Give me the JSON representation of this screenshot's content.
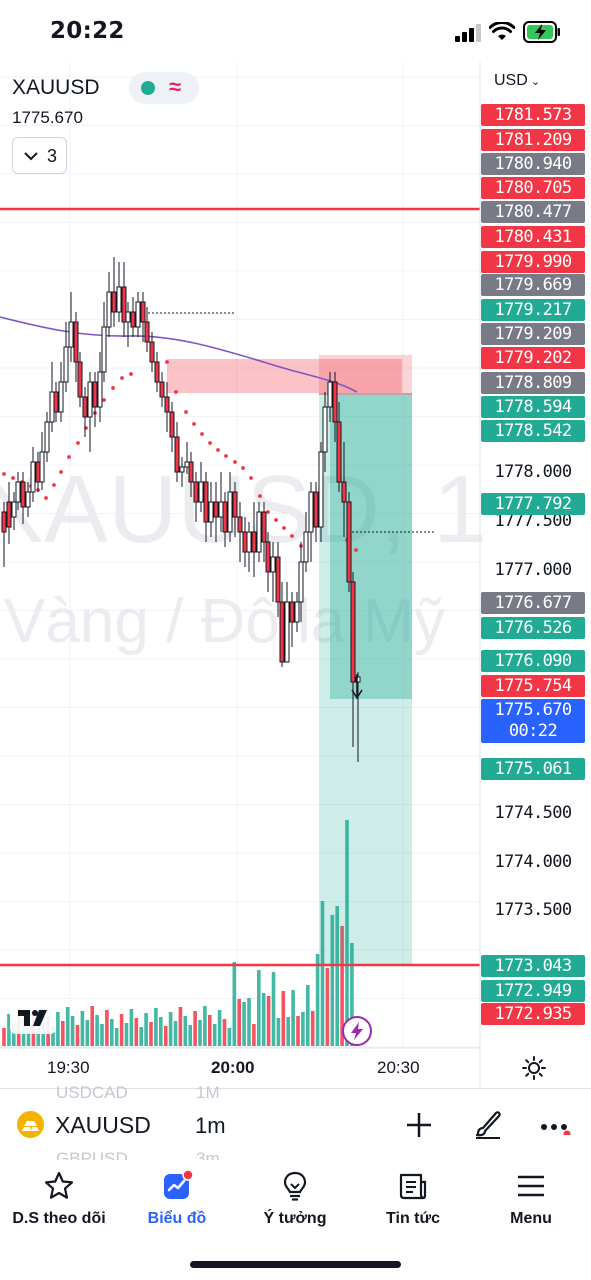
{
  "status_bar": {
    "time": "20:22"
  },
  "chart": {
    "symbol": "XAUUSD",
    "last_price": "1775.670",
    "indicator_count": "3",
    "currency": "USD",
    "watermark_symbol": "XAUUSD, 1",
    "watermark_description": "Vàng / Đô la Mỹ",
    "countdown": "00:22",
    "time_labels": [
      "19:30",
      "20:00",
      "20:30"
    ],
    "price_ticks": [
      "1778.000",
      "1777.500",
      "1777.000",
      "1774.500",
      "1774.000",
      "1773.500"
    ],
    "price_labels": [
      {
        "value": "1781.573",
        "color": "red"
      },
      {
        "value": "1781.209",
        "color": "red"
      },
      {
        "value": "1780.940",
        "color": "grey"
      },
      {
        "value": "1780.705",
        "color": "red"
      },
      {
        "value": "1780.477",
        "color": "grey"
      },
      {
        "value": "1780.431",
        "color": "red"
      },
      {
        "value": "1779.990",
        "color": "red"
      },
      {
        "value": "1779.669",
        "color": "grey"
      },
      {
        "value": "1779.217",
        "color": "green"
      },
      {
        "value": "1779.209",
        "color": "grey"
      },
      {
        "value": "1779.202",
        "color": "red"
      },
      {
        "value": "1778.809",
        "color": "grey"
      },
      {
        "value": "1778.594",
        "color": "green"
      },
      {
        "value": "1778.542",
        "color": "green"
      },
      {
        "value": "1777.792",
        "color": "green"
      },
      {
        "value": "1776.677",
        "color": "grey"
      },
      {
        "value": "1776.526",
        "color": "green"
      },
      {
        "value": "1776.090",
        "color": "green"
      },
      {
        "value": "1775.754",
        "color": "red"
      },
      {
        "value": "1775.670",
        "color": "blue"
      },
      {
        "value": "1775.061",
        "color": "green"
      },
      {
        "value": "1773.043",
        "color": "green"
      },
      {
        "value": "1772.949",
        "color": "green"
      },
      {
        "value": "1772.935",
        "color": "red"
      }
    ],
    "colors": {
      "up": "#22ab94",
      "down": "#f23645",
      "ma": "#7e57c2",
      "sar": "#f23645"
    },
    "icons": {
      "logo": "tradingview-logo-icon",
      "bolt": "lightning-icon",
      "settings": "gear-icon"
    }
  },
  "symbol_bar": {
    "symbol": "XAUUSD",
    "timeframe": "1m",
    "ghost_symbol_above": "USDCAD",
    "ghost_tf_above": "1M",
    "ghost_symbol_below": "GBPUSD",
    "ghost_tf_below": "3m"
  },
  "tabs": [
    {
      "label": "D.S theo dõi",
      "icon": "star-icon",
      "active": false
    },
    {
      "label": "Biểu đồ",
      "icon": "chart-icon",
      "active": true
    },
    {
      "label": "Ý tưởng",
      "icon": "lightbulb-icon",
      "active": false
    },
    {
      "label": "Tin tức",
      "icon": "news-icon",
      "active": false
    },
    {
      "label": "Menu",
      "icon": "hamburger-icon",
      "active": false
    }
  ]
}
